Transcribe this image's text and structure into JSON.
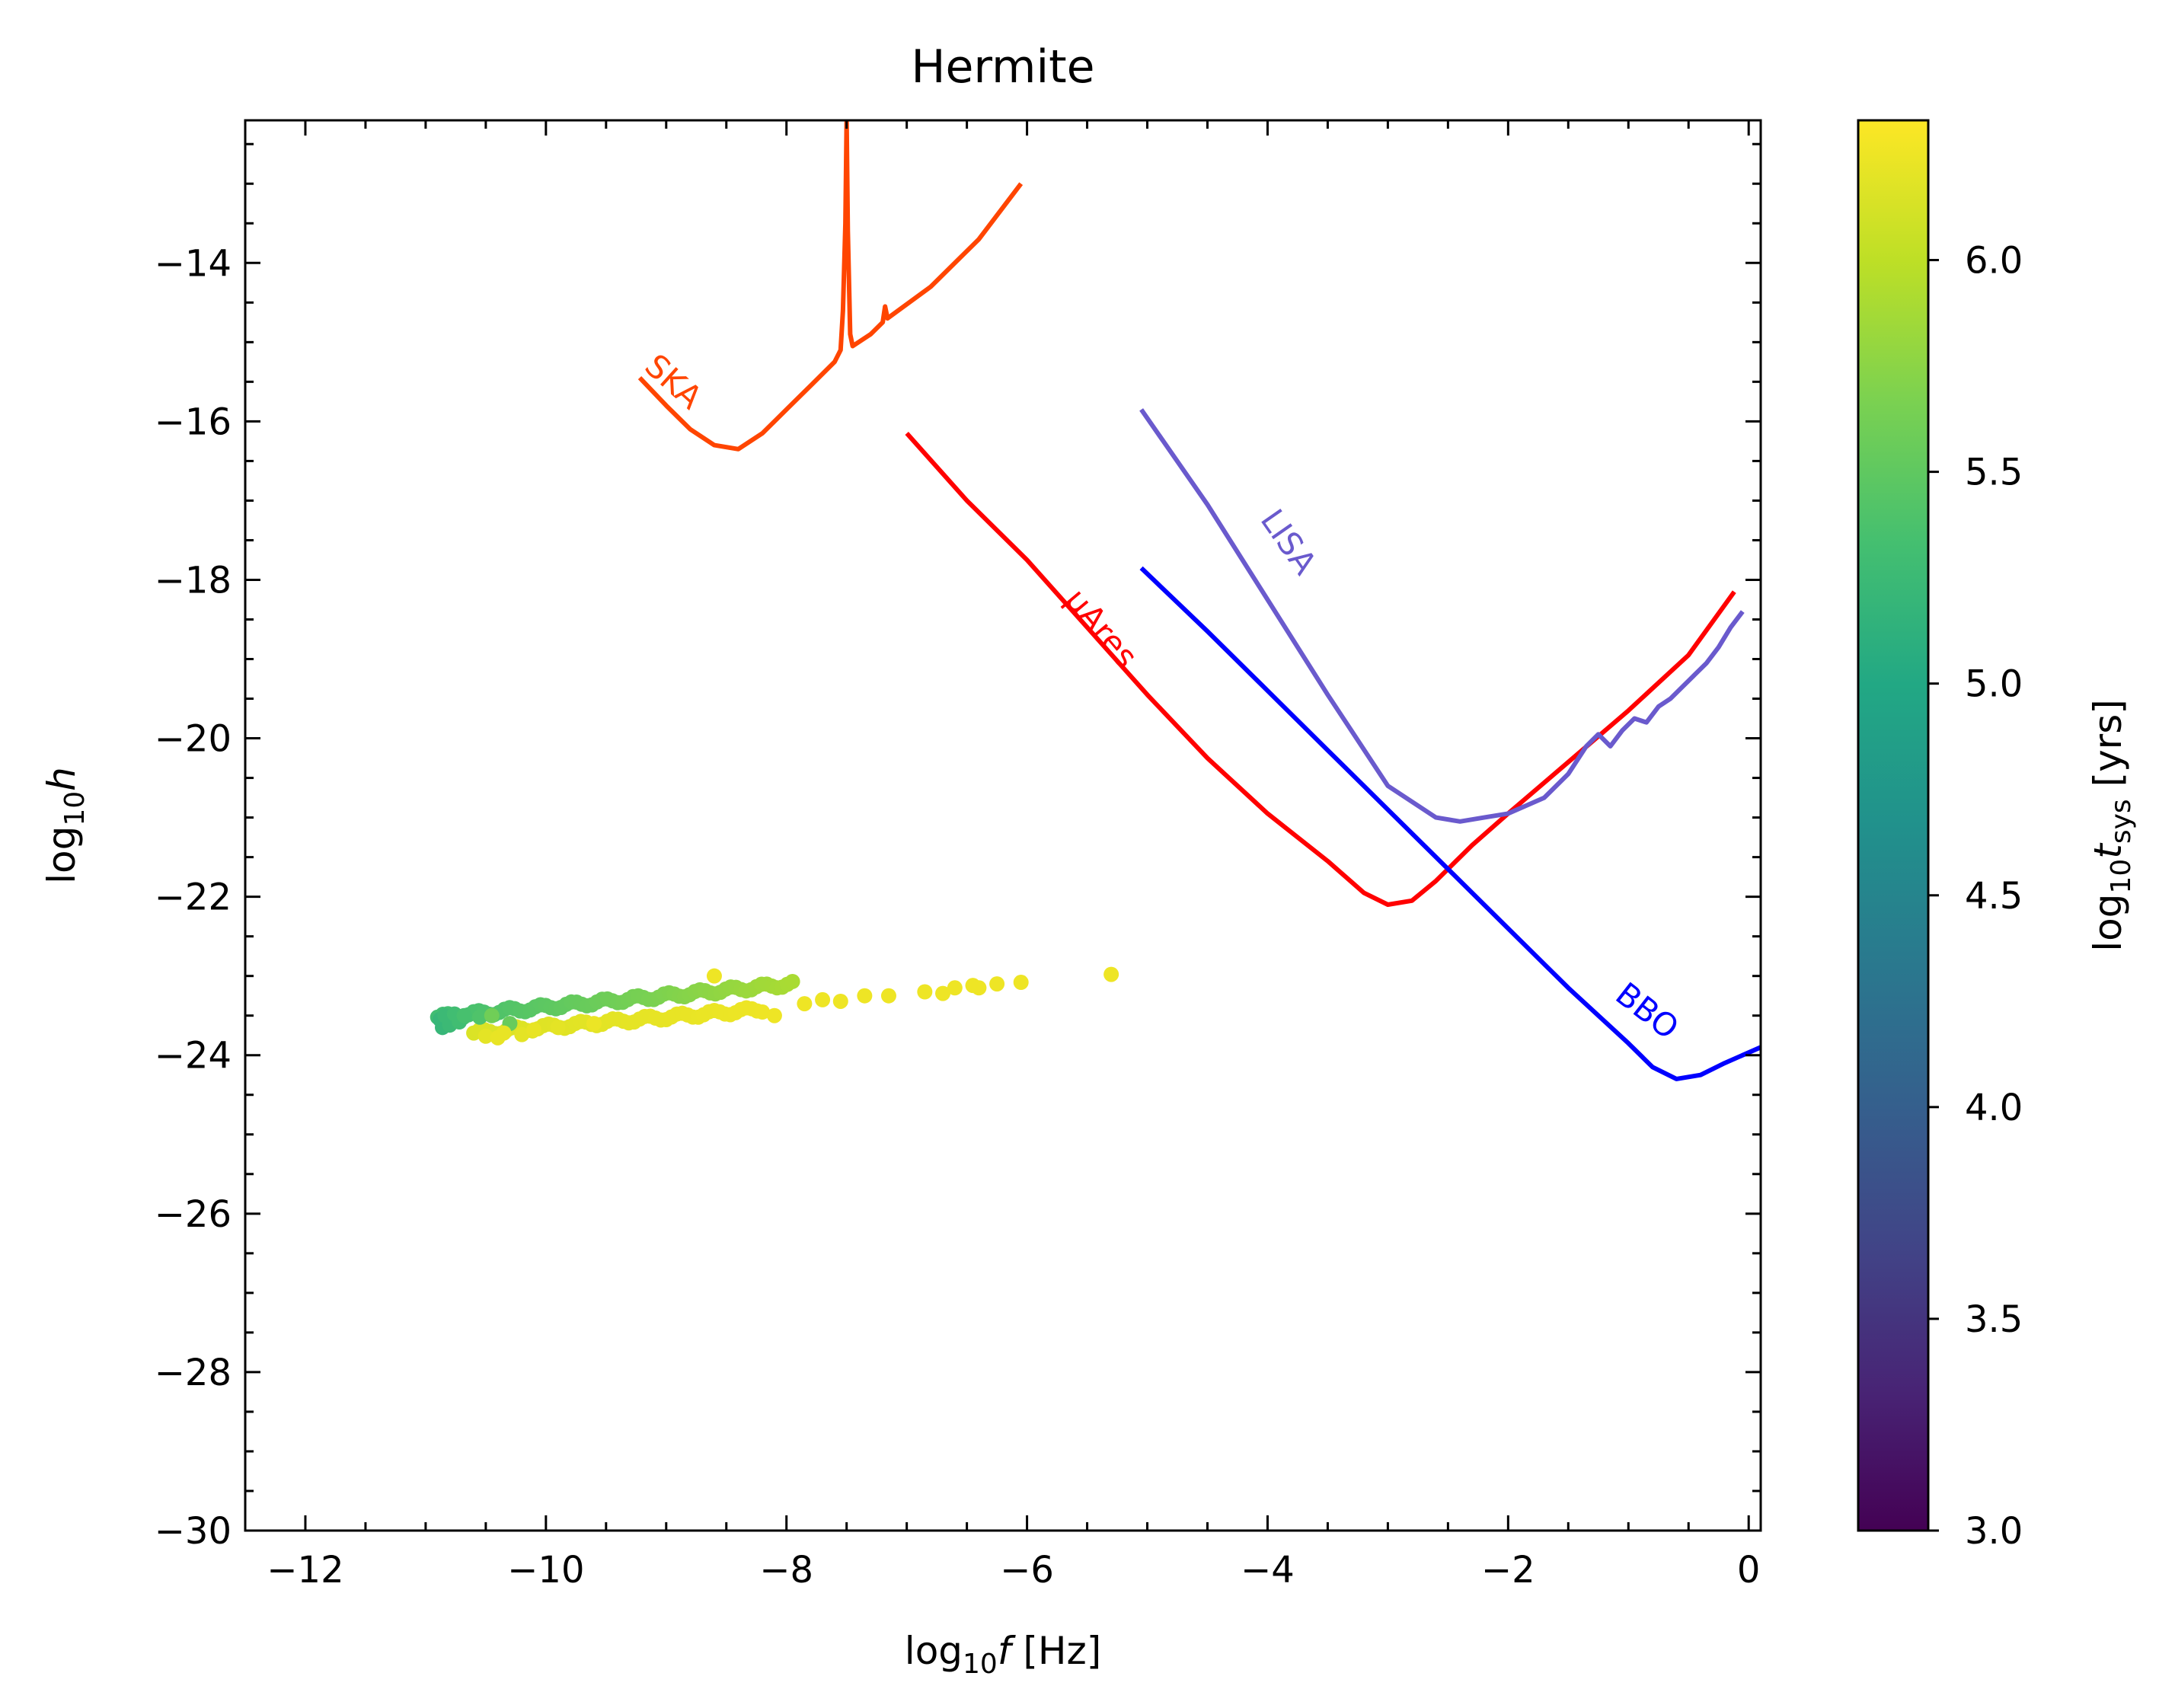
{
  "chart_data": {
    "type": "line",
    "title": "Hermite",
    "xlabel": {
      "base": "log",
      "sub": "10",
      "var": "f",
      "unit": " [Hz]"
    },
    "ylabel": {
      "base": "log",
      "sub": "10",
      "var": "h"
    },
    "xlim": [
      -12.5,
      0.1
    ],
    "ylim": [
      -30,
      -12.2
    ],
    "xticks": [
      -12,
      -10,
      -8,
      -6,
      -4,
      -2,
      0
    ],
    "xtick_labels": [
      "−12",
      "−10",
      "−8",
      "−6",
      "−4",
      "−2",
      "0"
    ],
    "yticks": [
      -30,
      -28,
      -26,
      -24,
      -22,
      -20,
      -18,
      -16,
      -14
    ],
    "ytick_labels": [
      "−30",
      "−28",
      "−26",
      "−24",
      "−22",
      "−20",
      "−18",
      "−16",
      "−14"
    ],
    "series": [
      {
        "name": "SKA",
        "color": "#ff4500",
        "points": [
          [
            -9.22,
            -15.45
          ],
          [
            -9.0,
            -15.8
          ],
          [
            -8.8,
            -16.1
          ],
          [
            -8.6,
            -16.3
          ],
          [
            -8.4,
            -16.35
          ],
          [
            -8.2,
            -16.15
          ],
          [
            -8.0,
            -15.85
          ],
          [
            -7.8,
            -15.55
          ],
          [
            -7.6,
            -15.25
          ],
          [
            -7.55,
            -15.1
          ],
          [
            -7.53,
            -14.6
          ],
          [
            -7.51,
            -13.5
          ],
          [
            -7.5,
            -12.2
          ],
          [
            -7.49,
            -13.6
          ],
          [
            -7.47,
            -14.9
          ],
          [
            -7.45,
            -15.05
          ],
          [
            -7.3,
            -14.9
          ],
          [
            -7.2,
            -14.75
          ],
          [
            -7.18,
            -14.55
          ],
          [
            -7.16,
            -14.7
          ],
          [
            -6.8,
            -14.3
          ],
          [
            -6.4,
            -13.7
          ],
          [
            -6.05,
            -13.0
          ]
        ],
        "label_pos": [
          -9.0,
          -15.6
        ],
        "label_angle": 42
      },
      {
        "name": "μAres",
        "color": "#ff0000",
        "points": [
          [
            -7.0,
            -16.15
          ],
          [
            -6.5,
            -17.0
          ],
          [
            -6.0,
            -17.75
          ],
          [
            -5.5,
            -18.6
          ],
          [
            -5.0,
            -19.45
          ],
          [
            -4.5,
            -20.25
          ],
          [
            -4.0,
            -20.95
          ],
          [
            -3.5,
            -21.55
          ],
          [
            -3.2,
            -21.95
          ],
          [
            -3.0,
            -22.1
          ],
          [
            -2.8,
            -22.05
          ],
          [
            -2.6,
            -21.8
          ],
          [
            -2.3,
            -21.35
          ],
          [
            -2.0,
            -20.95
          ],
          [
            -1.5,
            -20.3
          ],
          [
            -1.0,
            -19.65
          ],
          [
            -0.5,
            -18.95
          ],
          [
            -0.12,
            -18.15
          ]
        ],
        "label_pos": [
          -5.45,
          -18.7
        ],
        "label_angle": 50
      },
      {
        "name": "LISA",
        "color": "#6a5acd",
        "points": [
          [
            -5.05,
            -15.85
          ],
          [
            -4.5,
            -17.05
          ],
          [
            -4.0,
            -18.25
          ],
          [
            -3.5,
            -19.45
          ],
          [
            -3.0,
            -20.6
          ],
          [
            -2.6,
            -21.0
          ],
          [
            -2.4,
            -21.05
          ],
          [
            -2.2,
            -21.0
          ],
          [
            -2.0,
            -20.95
          ],
          [
            -1.7,
            -20.75
          ],
          [
            -1.5,
            -20.45
          ],
          [
            -1.35,
            -20.1
          ],
          [
            -1.25,
            -19.95
          ],
          [
            -1.15,
            -20.1
          ],
          [
            -1.05,
            -19.9
          ],
          [
            -0.95,
            -19.75
          ],
          [
            -0.85,
            -19.8
          ],
          [
            -0.75,
            -19.6
          ],
          [
            -0.65,
            -19.5
          ],
          [
            -0.55,
            -19.35
          ],
          [
            -0.45,
            -19.2
          ],
          [
            -0.35,
            -19.05
          ],
          [
            -0.25,
            -18.85
          ],
          [
            -0.15,
            -18.6
          ],
          [
            -0.05,
            -18.4
          ]
        ],
        "label_pos": [
          -3.9,
          -17.6
        ],
        "label_angle": 55
      },
      {
        "name": "BBO",
        "color": "#0000ff",
        "points": [
          [
            -5.05,
            -17.85
          ],
          [
            -4.5,
            -18.65
          ],
          [
            -4.0,
            -19.4
          ],
          [
            -3.5,
            -20.15
          ],
          [
            -3.0,
            -20.9
          ],
          [
            -2.5,
            -21.65
          ],
          [
            -2.0,
            -22.4
          ],
          [
            -1.5,
            -23.15
          ],
          [
            -1.0,
            -23.85
          ],
          [
            -0.8,
            -24.15
          ],
          [
            -0.6,
            -24.3
          ],
          [
            -0.4,
            -24.25
          ],
          [
            -0.2,
            -24.1
          ],
          [
            0.1,
            -23.9
          ]
        ],
        "label_pos": [
          -0.9,
          -23.55
        ],
        "label_angle": 38
      }
    ],
    "scatter": {
      "name": "binaries",
      "colormap": "viridis",
      "clim": [
        3.0,
        6.33
      ],
      "upper_band": {
        "x_start": -10.9,
        "x_end": -7.95,
        "y_start": -23.52,
        "y_end": -23.1,
        "c_start": 5.3,
        "c_end": 5.9,
        "count": 70
      },
      "lower_band": {
        "x_start": -10.6,
        "x_end": -8.2,
        "y_start": -23.72,
        "y_end": -23.42,
        "c_start": 6.15,
        "c_end": 6.25,
        "count": 55
      },
      "points": [
        [
          -10.88,
          -23.55,
          5.2
        ],
        [
          -10.86,
          -23.65,
          5.2
        ],
        [
          -10.84,
          -23.5,
          5.25
        ],
        [
          -10.8,
          -23.62,
          5.25
        ],
        [
          -10.76,
          -23.48,
          5.3
        ],
        [
          -10.72,
          -23.58,
          5.3
        ],
        [
          -10.68,
          -23.5,
          5.35
        ],
        [
          -10.55,
          -23.52,
          5.4
        ],
        [
          -10.45,
          -23.5,
          5.6
        ],
        [
          -10.3,
          -23.6,
          5.55
        ],
        [
          -10.5,
          -23.76,
          6.2
        ],
        [
          -10.4,
          -23.78,
          6.22
        ],
        [
          -10.35,
          -23.72,
          6.22
        ],
        [
          -10.2,
          -23.74,
          6.2
        ],
        [
          -10.1,
          -23.68,
          6.22
        ],
        [
          -9.9,
          -23.65,
          6.2
        ],
        [
          -9.6,
          -23.6,
          6.24
        ],
        [
          -8.6,
          -23.0,
          6.25
        ],
        [
          -8.1,
          -23.5,
          6.25
        ],
        [
          -7.85,
          -23.35,
          6.25
        ],
        [
          -7.7,
          -23.3,
          6.25
        ],
        [
          -7.55,
          -23.32,
          6.25
        ],
        [
          -7.35,
          -23.25,
          6.25
        ],
        [
          -7.15,
          -23.25,
          6.25
        ],
        [
          -6.85,
          -23.2,
          6.25
        ],
        [
          -6.7,
          -23.22,
          6.25
        ],
        [
          -6.6,
          -23.15,
          6.25
        ],
        [
          -6.45,
          -23.12,
          6.25
        ],
        [
          -6.4,
          -23.15,
          6.25
        ],
        [
          -6.25,
          -23.1,
          6.25
        ],
        [
          -6.05,
          -23.08,
          6.25
        ],
        [
          -5.3,
          -22.98,
          6.25
        ]
      ]
    },
    "colorbar": {
      "label": {
        "base": "log",
        "sub": "10",
        "var": "t",
        "varsub": "sys",
        "unit": " [yrs]"
      },
      "ticks": [
        3.0,
        3.5,
        4.0,
        4.5,
        5.0,
        5.5,
        6.0
      ],
      "tick_labels": [
        "3.0",
        "3.5",
        "4.0",
        "4.5",
        "5.0",
        "5.5",
        "6.0"
      ]
    },
    "grid": false,
    "legend": "none"
  }
}
